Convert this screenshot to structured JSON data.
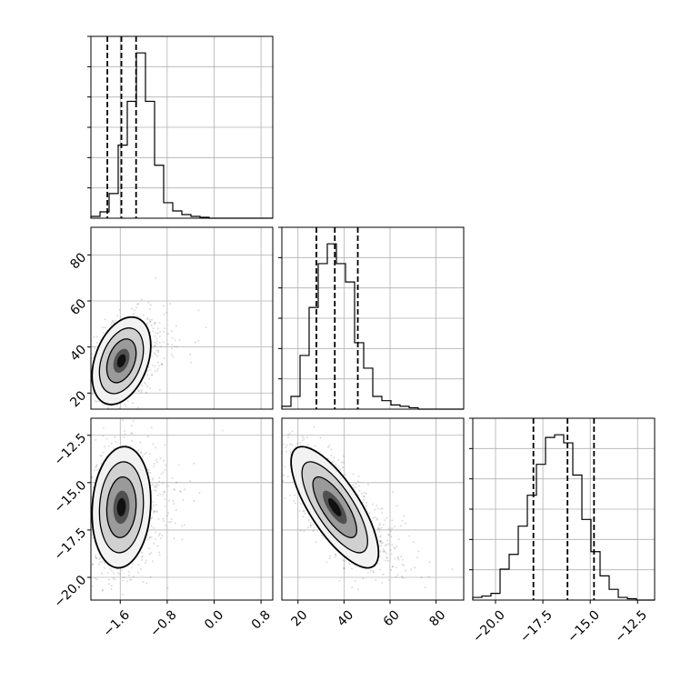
{
  "chart_data": {
    "type": "corner",
    "grid": true,
    "parameters": [
      {
        "range": [
          -2.1,
          1.0
        ],
        "ticks": [
          -1.6,
          -0.8,
          0.0,
          0.8
        ],
        "tick_labels": [
          "-1.6",
          "-0.8",
          "0.0",
          "0.8"
        ],
        "quantiles": [
          -1.82,
          -1.58,
          -1.33
        ],
        "hist_edges": [
          -2.1,
          -1.945,
          -1.79,
          -1.635,
          -1.48,
          -1.325,
          -1.17,
          -1.015,
          -0.86,
          -0.705,
          -0.55,
          -0.395,
          -0.24,
          -0.085,
          0.07,
          0.225,
          0.38,
          0.535,
          0.69,
          0.845,
          1.0
        ],
        "hist_counts": [
          2,
          7,
          27,
          80,
          128,
          181,
          128,
          58,
          17,
          8,
          4,
          2,
          1,
          0,
          0,
          0,
          0,
          0,
          0,
          0
        ]
      },
      {
        "range": [
          13,
          92
        ],
        "ticks": [
          20,
          40,
          60,
          80
        ],
        "tick_labels": [
          "20",
          "40",
          "60",
          "80"
        ],
        "quantiles": [
          28,
          36,
          46
        ],
        "hist_edges": [
          13,
          16.95,
          20.9,
          24.85,
          28.8,
          32.75,
          36.7,
          40.65,
          44.6,
          48.55,
          52.5,
          56.45,
          60.4,
          64.35,
          68.3,
          72.25,
          76.2,
          80.15,
          84.1,
          88.05,
          92
        ],
        "hist_counts": [
          2,
          9,
          38,
          72,
          103,
          117,
          103,
          90,
          47,
          29,
          9,
          6,
          3,
          2,
          1,
          0,
          0,
          0,
          0,
          0
        ]
      },
      {
        "range": [
          -21.2,
          -11.6
        ],
        "ticks": [
          -20.0,
          -17.5,
          -15.0,
          -12.5
        ],
        "tick_labels": [
          "−20.0",
          "−17.5",
          "−15.0",
          "−12.5"
        ],
        "ticks_left": [
          -12.5,
          -15.0,
          -17.5,
          -20.0
        ],
        "tick_labels_left": [
          "−12.5",
          "−15.0",
          "−17.5",
          "−20.0"
        ],
        "quantiles": [
          -18.0,
          -16.2,
          -14.8
        ],
        "hist_edges": [
          -21.2,
          -20.72,
          -20.24,
          -19.76,
          -19.28,
          -18.8,
          -18.32,
          -17.84,
          -17.36,
          -16.88,
          -16.4,
          -15.92,
          -15.44,
          -14.96,
          -14.48,
          -14.0,
          -13.52,
          -13.04,
          -12.56,
          -12.08,
          -11.6
        ],
        "hist_counts": [
          2,
          3,
          5,
          23,
          34,
          55,
          78,
          101,
          121,
          123,
          117,
          93,
          60,
          36,
          18,
          8,
          2,
          1,
          0,
          0
        ]
      }
    ],
    "joint": [
      {
        "x_param": 0,
        "y_param": 1,
        "center": [
          -1.58,
          34
        ],
        "sigma": [
          0.25,
          9.5
        ],
        "correlation": 0.35
      },
      {
        "x_param": 0,
        "y_param": 2,
        "center": [
          -1.58,
          -16.3
        ],
        "sigma": [
          0.25,
          1.6
        ],
        "correlation": 0.1
      },
      {
        "x_param": 1,
        "y_param": 2,
        "center": [
          36,
          -16.3
        ],
        "sigma": [
          9.5,
          1.6
        ],
        "correlation": -0.75
      }
    ]
  }
}
